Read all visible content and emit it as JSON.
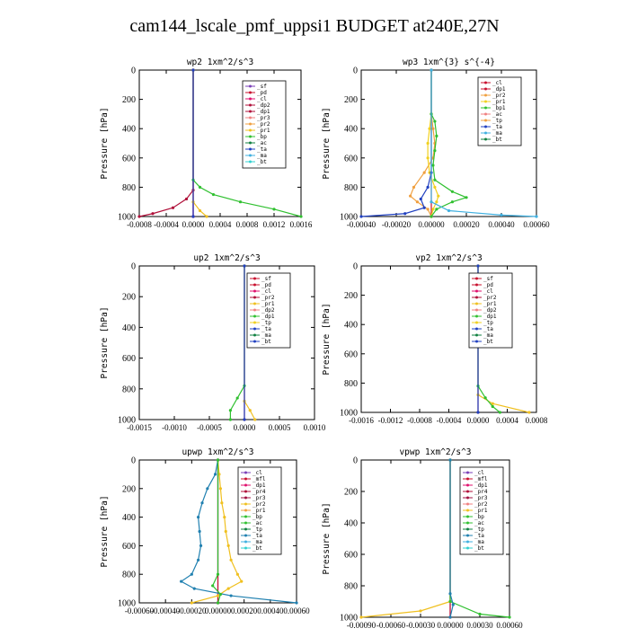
{
  "title": "cam144_lscale_pmf_uppsi1  BUDGET at240E,27N",
  "chart_data": [
    {
      "type": "line",
      "title": "wp2  1xm^2/s^3",
      "ylabel": "Pressure [hPa]",
      "ylim": [
        1000,
        0
      ],
      "yticks": [
        "0",
        "200",
        "400",
        "600",
        "800",
        "1000"
      ],
      "xlim": [
        -0.0008,
        0.0016
      ],
      "xtick_labels": [
        "-0.0008",
        "-0.0004",
        "0.0000",
        "0.0004",
        "0.0008",
        "0.0012",
        "0.0016"
      ],
      "legend": [
        "_sf",
        "_pd",
        "_cl",
        "_dp2",
        "_dp1",
        "_pr3",
        "_pr2",
        "_pr1",
        "_bp",
        "_ac",
        "_ta",
        "_ma",
        "_bt"
      ],
      "series": [
        {
          "name": "_sf",
          "color": "#7a3fb8",
          "y": [
            0,
            1000
          ],
          "x": [
            0,
            0
          ]
        },
        {
          "name": "_pd",
          "color": "#c8102e",
          "y": [
            0,
            1000
          ],
          "x": [
            0,
            0
          ]
        },
        {
          "name": "_cl",
          "color": "#e0106e",
          "y": [
            0,
            1000
          ],
          "x": [
            0,
            0
          ]
        },
        {
          "name": "_dp1",
          "color": "#b0103a",
          "y": [
            0,
            820,
            880,
            940,
            980,
            1000
          ],
          "x": [
            0,
            0,
            -0.0001,
            -0.0003,
            -0.0006,
            -0.0008
          ]
        },
        {
          "name": "_pr1",
          "color": "#f0c020",
          "y": [
            0,
            900,
            960,
            1000
          ],
          "x": [
            0,
            0,
            0.0001,
            0.0002
          ]
        },
        {
          "name": "_bp",
          "color": "#30c030",
          "y": [
            0,
            750,
            800,
            850,
            900,
            950,
            1000
          ],
          "x": [
            0,
            0,
            0.0001,
            0.0003,
            0.0007,
            0.0012,
            0.0016
          ]
        },
        {
          "name": "_ta",
          "color": "#2040c0",
          "y": [
            0,
            1000
          ],
          "x": [
            0,
            0
          ]
        }
      ]
    },
    {
      "type": "line",
      "title": "wp3  1xm^{3} s^{-4}",
      "ylabel": "Pressure [hPa]",
      "ylim": [
        1000,
        0
      ],
      "yticks": [
        "0",
        "200",
        "400",
        "600",
        "800",
        "1000"
      ],
      "xlim": [
        -0.0004,
        0.0006
      ],
      "xtick_labels": [
        "-0.00040",
        "-0.00020",
        "0.00000",
        "0.00020",
        "0.00040",
        "0.00060"
      ],
      "legend": [
        "_cl",
        "_dp1",
        "_pr2",
        "_pr1",
        "_bp1",
        "_ac",
        "_tp",
        "_ta",
        "_ma",
        "_bt"
      ],
      "series": [
        {
          "name": "_cl",
          "color": "#c8102e",
          "y": [
            0,
            1000
          ],
          "x": [
            0,
            0
          ]
        },
        {
          "name": "_pr2",
          "color": "#f0a040",
          "y": [
            0,
            300,
            400,
            500,
            600,
            700,
            800,
            860,
            900,
            950,
            1000
          ],
          "x": [
            0,
            0,
            1e-05,
            2e-05,
            1e-05,
            -4e-05,
            -0.0001,
            -0.00012,
            -8e-05,
            -2e-05,
            0
          ]
        },
        {
          "name": "_pr1",
          "color": "#f0d020",
          "y": [
            0,
            300,
            400,
            500,
            600,
            700,
            800,
            860,
            900,
            950,
            1000
          ],
          "x": [
            0,
            0,
            -1e-05,
            -2e-05,
            -2e-05,
            -1e-05,
            2e-05,
            4e-05,
            3e-05,
            1e-05,
            0
          ]
        },
        {
          "name": "_bp1",
          "color": "#30c030",
          "y": [
            0,
            300,
            350,
            450,
            550,
            650,
            750,
            830,
            870,
            900,
            950,
            1000
          ],
          "x": [
            0,
            0,
            2e-05,
            3e-05,
            2e-05,
            1e-05,
            2e-05,
            0.00012,
            0.0002,
            0.00012,
            3e-05,
            0
          ]
        },
        {
          "name": "_ta",
          "color": "#2040c0",
          "y": [
            0,
            700,
            800,
            880,
            940,
            980,
            1000
          ],
          "x": [
            0,
            0,
            -2e-05,
            -6e-05,
            -4e-05,
            -0.00015,
            -0.0004
          ]
        },
        {
          "name": "_ma",
          "color": "#40b0e0",
          "y": [
            0,
            900,
            960,
            990,
            1000
          ],
          "x": [
            0,
            0,
            0.0001,
            0.0004,
            0.0006
          ]
        }
      ]
    },
    {
      "type": "line",
      "title": "up2  1xm^2/s^3",
      "ylabel": "Pressure [hPa]",
      "ylim": [
        1000,
        0
      ],
      "yticks": [
        "0",
        "200",
        "400",
        "600",
        "800",
        "1000"
      ],
      "xlim": [
        -0.0015,
        0.001
      ],
      "xtick_labels": [
        "-0.0015",
        "-0.0010",
        "-0.0005",
        "0.0000",
        "0.0005",
        "0.0010"
      ],
      "legend": [
        "_sf",
        "_pd",
        "_cl",
        "_pr2",
        "_pr1",
        "_dp2",
        "_dp1",
        "_tp",
        "_ta",
        "_ma",
        "_bt"
      ],
      "series": [
        {
          "name": "_sf",
          "color": "#c8102e",
          "y": [
            0,
            1000
          ],
          "x": [
            0,
            0
          ]
        },
        {
          "name": "_pr1",
          "color": "#f0c020",
          "y": [
            0,
            880,
            940,
            1000
          ],
          "x": [
            0,
            0,
            8e-05,
            0.00015
          ]
        },
        {
          "name": "_dp1",
          "color": "#30c030",
          "y": [
            0,
            780,
            860,
            940,
            1000
          ],
          "x": [
            0,
            0,
            -0.0001,
            -0.0002,
            -0.0002
          ]
        },
        {
          "name": "_ta",
          "color": "#2040c0",
          "y": [
            0,
            1000
          ],
          "x": [
            0,
            0
          ]
        }
      ]
    },
    {
      "type": "line",
      "title": "vp2  1xm^2/s^3",
      "ylabel": "Pressure [hPa]",
      "ylim": [
        1000,
        0
      ],
      "yticks": [
        "0",
        "200",
        "400",
        "600",
        "800",
        "1000"
      ],
      "xlim": [
        -0.0016,
        0.0008
      ],
      "xtick_labels": [
        "-0.0016",
        "-0.0012",
        "-0.0008",
        "-0.0004",
        "0.0000",
        "0.0004",
        "0.0008"
      ],
      "legend": [
        "_sf",
        "_pd",
        "_cl",
        "_pr2",
        "_pr1",
        "_dp2",
        "_dp1",
        "_tp",
        "_ta",
        "_ma",
        "_bt"
      ],
      "series": [
        {
          "name": "_sf",
          "color": "#c8102e",
          "y": [
            0,
            1000
          ],
          "x": [
            0,
            0
          ]
        },
        {
          "name": "_pr1",
          "color": "#f0c020",
          "y": [
            0,
            880,
            940,
            1000
          ],
          "x": [
            0,
            0,
            0.0002,
            0.0007
          ]
        },
        {
          "name": "_dp1",
          "color": "#30c030",
          "y": [
            0,
            820,
            900,
            960,
            1000
          ],
          "x": [
            0,
            0,
            0.0001,
            0.0002,
            0.0003
          ]
        },
        {
          "name": "_ta",
          "color": "#2040c0",
          "y": [
            0,
            1000
          ],
          "x": [
            0,
            0
          ]
        }
      ]
    },
    {
      "type": "line",
      "title": "upwp  1xm^2/s^3",
      "ylabel": "Pressure [hPa]",
      "ylim": [
        1000,
        0
      ],
      "yticks": [
        "0",
        "200",
        "400",
        "600",
        "800",
        "1000"
      ],
      "xlim": [
        -0.0006,
        0.0006
      ],
      "xtick_labels": [
        "-0.00060",
        "-0.00040",
        "-0.00020",
        "0.00000",
        "0.00020",
        "0.00040",
        "0.00060"
      ],
      "legend": [
        "_cl",
        "_mfl",
        "_dp1",
        "_pr4",
        "_pr3",
        "_pr2",
        "_pr1",
        "_bp",
        "_ac",
        "_tp",
        "_ta",
        "_ma",
        "_bt"
      ],
      "series": [
        {
          "name": "_cl",
          "color": "#7a3fb8",
          "y": [
            0,
            1000
          ],
          "x": [
            0,
            0
          ]
        },
        {
          "name": "_mfl",
          "color": "#c8102e",
          "y": [
            0,
            1000
          ],
          "x": [
            0,
            0
          ]
        },
        {
          "name": "_pr2",
          "color": "#f0c020",
          "y": [
            0,
            100,
            200,
            300,
            400,
            500,
            600,
            700,
            800,
            850,
            900,
            950,
            1000
          ],
          "x": [
            0,
            1e-05,
            2e-05,
            3e-05,
            5e-05,
            6e-05,
            8e-05,
            0.0001,
            0.00015,
            0.00018,
            8e-05,
            0,
            -0.0002
          ]
        },
        {
          "name": "_ta",
          "color": "#2080b0",
          "y": [
            0,
            100,
            200,
            300,
            400,
            500,
            600,
            700,
            800,
            850,
            900,
            950,
            1000
          ],
          "x": [
            0,
            -2e-05,
            -8e-05,
            -0.00012,
            -0.00015,
            -0.00014,
            -0.00013,
            -0.00015,
            -0.0002,
            -0.00028,
            -0.00018,
            0.0001,
            0.0006
          ]
        },
        {
          "name": "_bp",
          "color": "#30c030",
          "y": [
            0,
            800,
            880,
            940,
            1000
          ],
          "x": [
            0,
            0,
            -4e-05,
            2e-05,
            0
          ]
        }
      ]
    },
    {
      "type": "line",
      "title": "vpwp  1xm^2/s^3",
      "ylabel": "Pressure [hPa]",
      "ylim": [
        1000,
        0
      ],
      "yticks": [
        "0",
        "200",
        "400",
        "600",
        "800",
        "1000"
      ],
      "xlim": [
        -0.0009,
        0.0006
      ],
      "xtick_labels": [
        "-0.00090",
        "-0.00060",
        "-0.00030",
        "0.00000",
        "0.00030",
        "0.00060"
      ],
      "legend": [
        "_cl",
        "_mfl",
        "_dp1",
        "_pr4",
        "_pr3",
        "_pr2",
        "_pr1",
        "_bp",
        "_ac",
        "_tp",
        "_ta",
        "_ma",
        "_bt"
      ],
      "series": [
        {
          "name": "_cl",
          "color": "#7a3fb8",
          "y": [
            0,
            1000
          ],
          "x": [
            0,
            0
          ]
        },
        {
          "name": "_mfl",
          "color": "#c8102e",
          "y": [
            0,
            1000
          ],
          "x": [
            0,
            0
          ]
        },
        {
          "name": "_pr1",
          "color": "#f0c020",
          "y": [
            0,
            900,
            960,
            1000
          ],
          "x": [
            0,
            0,
            -0.0003,
            -0.0009
          ]
        },
        {
          "name": "_bp",
          "color": "#30c030",
          "y": [
            0,
            900,
            980,
            1000
          ],
          "x": [
            0,
            0,
            0.0003,
            0.0006
          ]
        },
        {
          "name": "_ta",
          "color": "#2080b0",
          "y": [
            0,
            850,
            920,
            1000
          ],
          "x": [
            0,
            0,
            3e-05,
            0
          ]
        }
      ]
    }
  ]
}
